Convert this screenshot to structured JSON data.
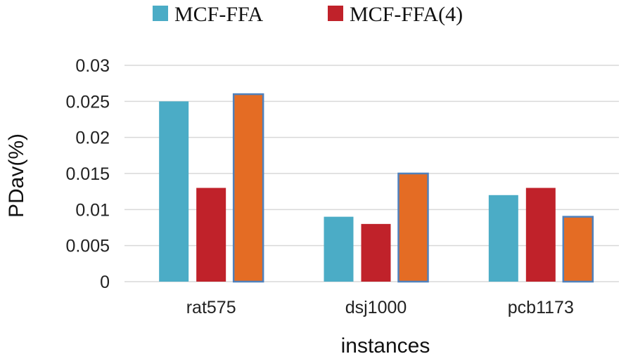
{
  "chart_data": {
    "type": "bar",
    "title": "",
    "xlabel": "instances",
    "ylabel": "PDav(%)",
    "categories": [
      "rat575",
      "dsj1000",
      "pcb1173"
    ],
    "ylim": [
      0,
      0.03
    ],
    "yticks": [
      0,
      0.005,
      0.01,
      0.015,
      0.02,
      0.025,
      0.03
    ],
    "ytick_labels": [
      "0",
      "0.005",
      "0.01",
      "0.015",
      "0.02",
      "0.025",
      "0.03"
    ],
    "grid": true,
    "legend_position": "top",
    "series": [
      {
        "name": "MCF-FFA",
        "color": "#4bacc6",
        "values": [
          0.025,
          0.009,
          0.012
        ],
        "show_in_legend": true
      },
      {
        "name": "MCF-FFA(4)",
        "color": "#c0222a",
        "values": [
          0.013,
          0.008,
          0.013
        ],
        "show_in_legend": true
      },
      {
        "name": "",
        "color": "#e46c24",
        "outline": "#4f81bd",
        "values": [
          0.026,
          0.015,
          0.009
        ],
        "show_in_legend": false
      }
    ]
  }
}
